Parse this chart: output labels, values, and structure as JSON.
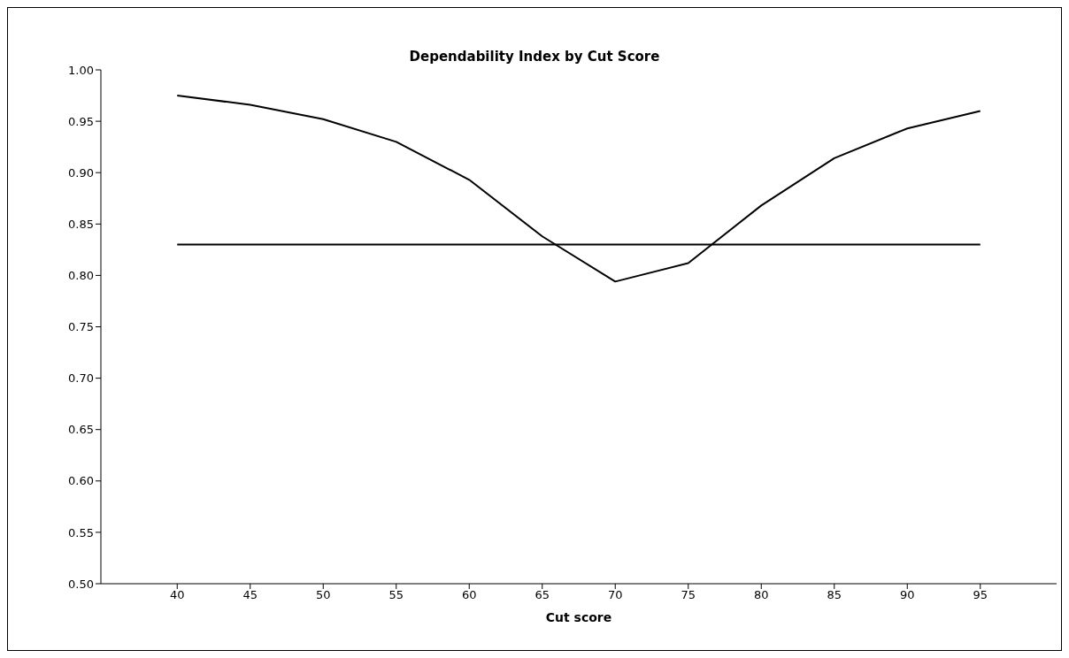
{
  "chart_data": {
    "type": "line",
    "title": "Dependability Index by Cut Score",
    "xlabel": "Cut score",
    "categories": [
      "40",
      "45",
      "50",
      "55",
      "60",
      "65",
      "70",
      "75",
      "80",
      "85",
      "90",
      "95"
    ],
    "series": [
      {
        "color": "#000000",
        "values": [
          0.975,
          0.966,
          0.952,
          0.93,
          0.893,
          0.838,
          0.794,
          0.812,
          0.868,
          0.914,
          0.943,
          0.96
        ]
      },
      {
        "color": "#000000",
        "values": [
          0.83,
          0.83,
          0.83,
          0.83,
          0.83,
          0.83,
          0.83,
          0.83,
          0.83,
          0.83,
          0.83,
          0.83
        ]
      }
    ],
    "ylim": [
      0.5,
      1.0
    ],
    "yticks": [
      {
        "value": 0.5,
        "label": "0.50"
      },
      {
        "value": 0.55,
        "label": "0.55"
      },
      {
        "value": 0.6,
        "label": "0.60"
      },
      {
        "value": 0.65,
        "label": "0.65"
      },
      {
        "value": 0.7,
        "label": "0.70"
      },
      {
        "value": 0.75,
        "label": "0.75"
      },
      {
        "value": 0.8,
        "label": "0.80"
      },
      {
        "value": 0.85,
        "label": "0.85"
      },
      {
        "value": 0.9,
        "label": "0.90"
      },
      {
        "value": 0.95,
        "label": "0.95"
      },
      {
        "value": 1.0,
        "label": "1.00"
      }
    ],
    "grid": false,
    "marker": "none",
    "line_style": "solid"
  }
}
